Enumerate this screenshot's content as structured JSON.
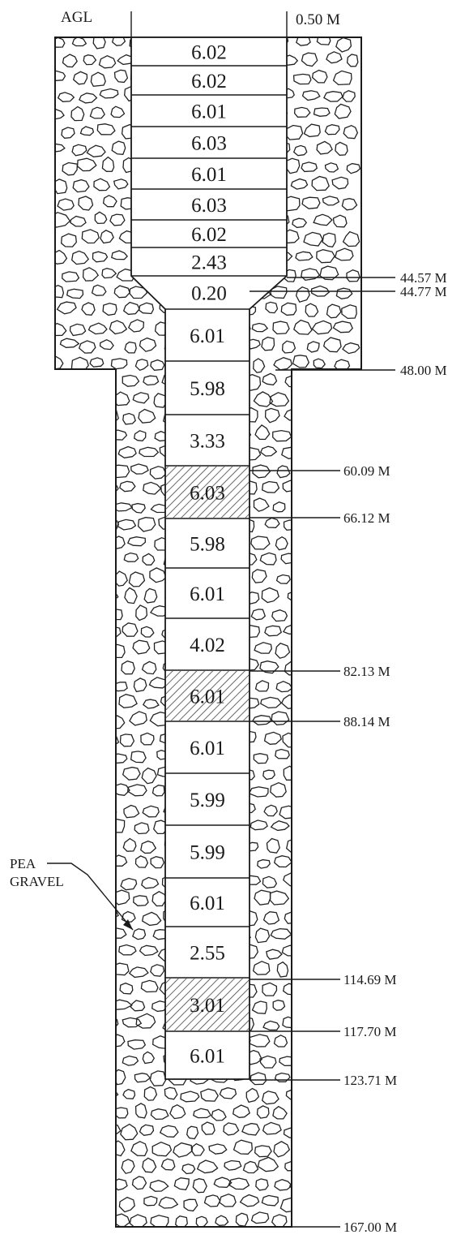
{
  "header": {
    "left_label": "AGL",
    "right_label": "0.50 M"
  },
  "side_label": {
    "line1": "PEA",
    "line2": "GRAVEL"
  },
  "segments": [
    {
      "value": "6.02",
      "hatched": false
    },
    {
      "value": "6.02",
      "hatched": false
    },
    {
      "value": "6.01",
      "hatched": false
    },
    {
      "value": "6.03",
      "hatched": false
    },
    {
      "value": "6.01",
      "hatched": false
    },
    {
      "value": "6.03",
      "hatched": false
    },
    {
      "value": "6.02",
      "hatched": false
    },
    {
      "value": "2.43",
      "hatched": false
    },
    {
      "value": "0.20",
      "hatched": false
    },
    {
      "value": "6.01",
      "hatched": false
    },
    {
      "value": "5.98",
      "hatched": false
    },
    {
      "value": "3.33",
      "hatched": false
    },
    {
      "value": "6.03",
      "hatched": true
    },
    {
      "value": "5.98",
      "hatched": false
    },
    {
      "value": "6.01",
      "hatched": false
    },
    {
      "value": "4.02",
      "hatched": false
    },
    {
      "value": "6.01",
      "hatched": true
    },
    {
      "value": "6.01",
      "hatched": false
    },
    {
      "value": "5.99",
      "hatched": false
    },
    {
      "value": "5.99",
      "hatched": false
    },
    {
      "value": "6.01",
      "hatched": false
    },
    {
      "value": "2.55",
      "hatched": false
    },
    {
      "value": "3.01",
      "hatched": true
    },
    {
      "value": "6.01",
      "hatched": false
    }
  ],
  "depth_markers": [
    "44.57 M",
    "44.77 M",
    "48.00 M",
    "60.09 M",
    "66.12 M",
    "82.13 M",
    "88.14 M",
    "114.69 M",
    "117.70 M",
    "123.71 M",
    "167.00 M"
  ],
  "colors": {
    "line": "#1a1a1a",
    "casing_fill": "#ffffff",
    "gravel_bg": "#ffffff"
  }
}
